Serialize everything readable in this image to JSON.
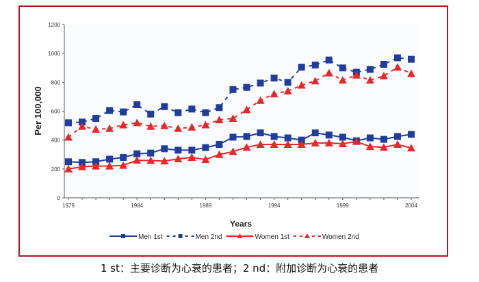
{
  "chart_data": {
    "type": "line",
    "title": "",
    "xlabel": "Years",
    "ylabel": "Per 100,000",
    "xlim": [
      1979,
      2004
    ],
    "ylim": [
      0,
      1200
    ],
    "yticks": [
      0,
      200,
      400,
      600,
      800,
      1000,
      1200
    ],
    "xticks": [
      1979,
      1984,
      1989,
      1994,
      1999,
      2004
    ],
    "grid": false,
    "legend_position": "bottom",
    "x": [
      1979,
      1980,
      1981,
      1982,
      1983,
      1984,
      1985,
      1986,
      1987,
      1988,
      1989,
      1990,
      1991,
      1992,
      1993,
      1994,
      1995,
      1996,
      1997,
      1998,
      1999,
      2000,
      2001,
      2002,
      2003,
      2004
    ],
    "series": [
      {
        "name": "Men 1st",
        "color": "#1f3d9c",
        "marker": "square",
        "dash": false,
        "values": [
          250,
          245,
          250,
          268,
          280,
          305,
          310,
          340,
          330,
          330,
          348,
          370,
          420,
          425,
          450,
          425,
          415,
          400,
          450,
          435,
          420,
          395,
          415,
          405,
          425,
          440
        ]
      },
      {
        "name": "Men 2nd",
        "color": "#1f3d9c",
        "marker": "square",
        "dash": true,
        "values": [
          520,
          525,
          550,
          605,
          595,
          645,
          580,
          632,
          590,
          615,
          590,
          625,
          750,
          765,
          795,
          830,
          800,
          905,
          920,
          955,
          900,
          870,
          890,
          925,
          970,
          960
        ]
      },
      {
        "name": "Women 1st",
        "color": "#e8272b",
        "marker": "triangle",
        "dash": false,
        "values": [
          200,
          215,
          220,
          220,
          225,
          260,
          258,
          255,
          270,
          280,
          265,
          300,
          320,
          350,
          370,
          370,
          370,
          370,
          380,
          380,
          375,
          390,
          355,
          350,
          370,
          345
        ]
      },
      {
        "name": "Women 2nd",
        "color": "#e8272b",
        "marker": "triangle",
        "dash": true,
        "values": [
          420,
          495,
          475,
          480,
          505,
          520,
          495,
          500,
          480,
          490,
          505,
          540,
          550,
          610,
          675,
          720,
          740,
          780,
          810,
          865,
          815,
          850,
          815,
          845,
          905,
          860
        ]
      }
    ]
  },
  "caption": "1 st：主要诊断为心衰的患者；2 nd：附加诊断为心衰的患者"
}
